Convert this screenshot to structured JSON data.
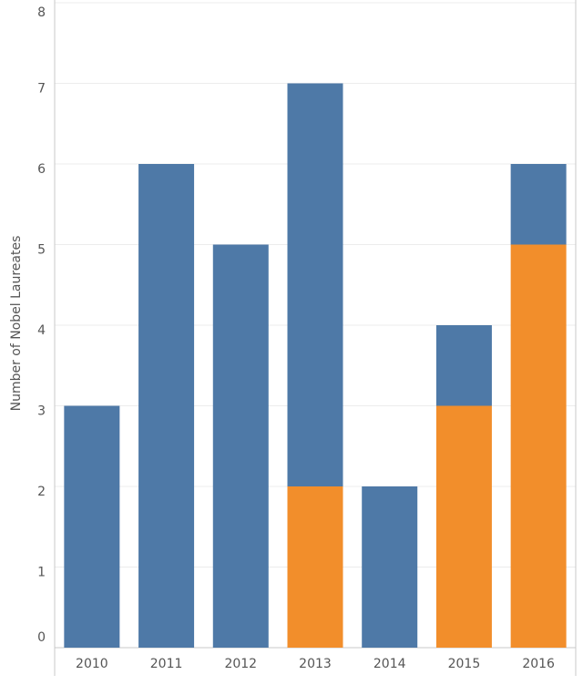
{
  "chart_data": {
    "type": "bar",
    "stacked": true,
    "y_label": "Number of Nobel Laureates",
    "categories": [
      "2010",
      "2011",
      "2012",
      "2013",
      "2014",
      "2015",
      "2016"
    ],
    "series": [
      {
        "color": "#f28e2b",
        "values": [
          0,
          0,
          0,
          2,
          0,
          3,
          5
        ]
      },
      {
        "color": "#4e79a7",
        "values": [
          3,
          6,
          5,
          5,
          2,
          1,
          1
        ]
      }
    ],
    "ylim": [
      0,
      8
    ],
    "yticks": [
      0,
      1,
      2,
      3,
      4,
      5,
      6,
      7,
      8
    ],
    "grid": true
  }
}
